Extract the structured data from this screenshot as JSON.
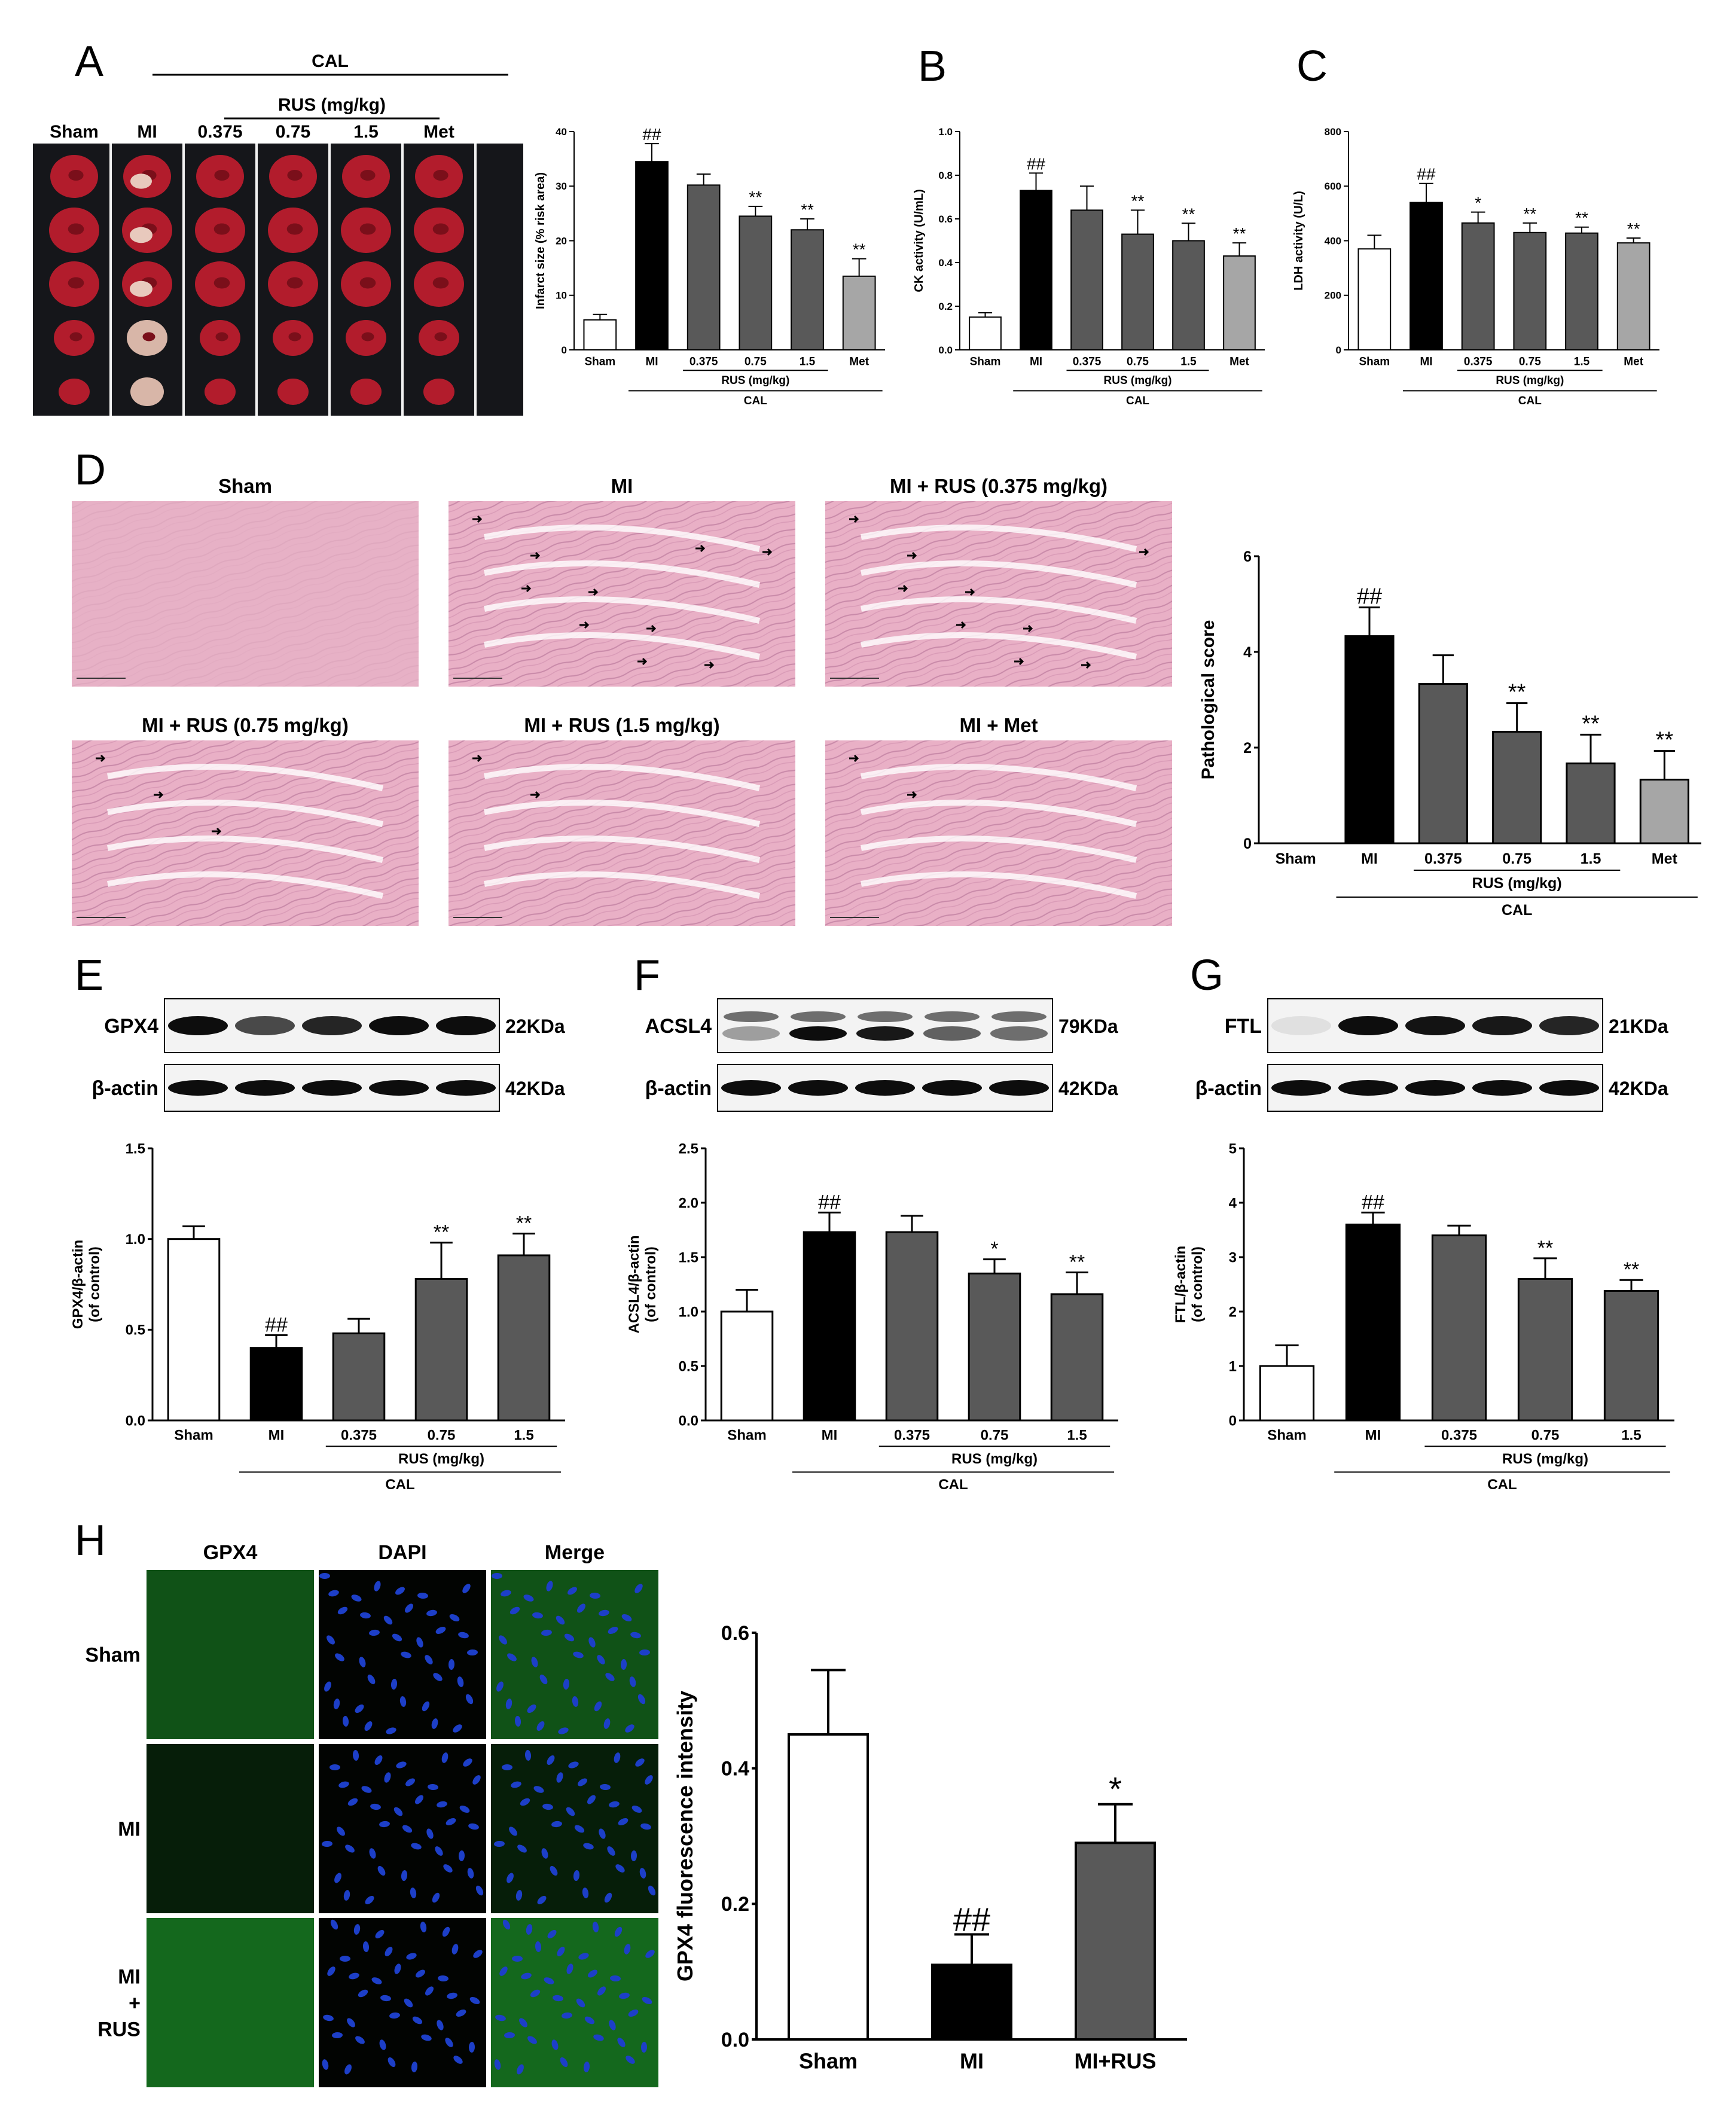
{
  "panel_labels": {
    "A": "A",
    "B": "B",
    "C": "C",
    "D": "D",
    "E": "E",
    "F": "F",
    "G": "G",
    "H": "H"
  },
  "colors": {
    "sham": "#ffffff",
    "mi": "#000000",
    "rus": "#595959",
    "met": "#a6a6a6",
    "tissue_bg": "#e9b0c6",
    "heart_red": "#b21c2c",
    "gfp": "#1e9b2c",
    "dapi": "#1d3fc8"
  },
  "panel_a_header": {
    "cal": "CAL",
    "rus": "RUS (mg/kg)",
    "columns": [
      "Sham",
      "MI",
      "0.375",
      "0.75",
      "1.5",
      "Met"
    ]
  },
  "panel_d_titles": [
    "Sham",
    "MI",
    "MI + RUS (0.375 mg/kg)",
    "MI + RUS (0.75 mg/kg)",
    "MI + RUS (1.5 mg/kg)",
    "MI + Met"
  ],
  "blots": {
    "E": {
      "rows": [
        {
          "label": "GPX4",
          "size": "22KDa"
        },
        {
          "label": "β-actin",
          "size": "42KDa"
        }
      ]
    },
    "F": {
      "rows": [
        {
          "label": "ACSL4",
          "size": "79KDa"
        },
        {
          "label": "β-actin",
          "size": "42KDa"
        }
      ]
    },
    "G": {
      "rows": [
        {
          "label": "FTL",
          "size": "21KDa"
        },
        {
          "label": "β-actin",
          "size": "42KDa"
        }
      ]
    }
  },
  "panel_h_header": {
    "cols": [
      "GPX4",
      "DAPI",
      "Merge"
    ],
    "rows": [
      "Sham",
      "MI",
      "MI\n+\nRUS"
    ]
  },
  "chart_data": [
    {
      "id": "A",
      "type": "bar",
      "categories": [
        "Sham",
        "MI",
        "0.375",
        "0.75",
        "1.5",
        "Met"
      ],
      "values": [
        5.5,
        34.5,
        30.2,
        24.5,
        22,
        13.5
      ],
      "errors": [
        1,
        3.3,
        2,
        1.8,
        2,
        3.2
      ],
      "marks": [
        "",
        "##",
        "",
        "**",
        "**",
        "**"
      ],
      "ylabel": "Infarct size (% risk area)",
      "ylim": [
        0,
        40
      ],
      "yticks": [
        "0",
        "10",
        "20",
        "30",
        "40"
      ],
      "group1": "RUS (mg/kg)",
      "group2": "CAL"
    },
    {
      "id": "B",
      "type": "bar",
      "categories": [
        "Sham",
        "MI",
        "0.375",
        "0.75",
        "1.5",
        "Met"
      ],
      "values": [
        0.15,
        0.73,
        0.64,
        0.53,
        0.5,
        0.43
      ],
      "errors": [
        0.02,
        0.08,
        0.11,
        0.11,
        0.08,
        0.06
      ],
      "marks": [
        "",
        "##",
        "",
        "**",
        "**",
        "**"
      ],
      "ylabel": "CK activity (U/mL)",
      "ylim": [
        0,
        1.0
      ],
      "yticks": [
        "0.0",
        "0.2",
        "0.4",
        "0.6",
        "0.8",
        "1.0"
      ],
      "group1": "RUS (mg/kg)",
      "group2": "CAL"
    },
    {
      "id": "C",
      "type": "bar",
      "categories": [
        "Sham",
        "MI",
        "0.375",
        "0.75",
        "1.5",
        "Met"
      ],
      "values": [
        370,
        540,
        465,
        430,
        428,
        392
      ],
      "errors": [
        50,
        70,
        40,
        35,
        22,
        18
      ],
      "marks": [
        "",
        "##",
        "*",
        "**",
        "**",
        "**"
      ],
      "ylabel": "LDH activity (U/L)",
      "ylim": [
        0,
        800
      ],
      "yticks": [
        "0",
        "200",
        "400",
        "600",
        "800"
      ],
      "group1": "RUS (mg/kg)",
      "group2": "CAL"
    },
    {
      "id": "D",
      "type": "bar",
      "categories": [
        "Sham",
        "MI",
        "0.375",
        "0.75",
        "1.5",
        "Met"
      ],
      "values": [
        0,
        4.33,
        3.33,
        2.33,
        1.67,
        1.33
      ],
      "errors": [
        0,
        0.6,
        0.6,
        0.6,
        0.6,
        0.6
      ],
      "marks": [
        "",
        "##",
        "",
        "**",
        "**",
        "**"
      ],
      "ylabel": "Pathological score",
      "ylim": [
        0,
        6
      ],
      "yticks": [
        "0",
        "2",
        "4",
        "6"
      ],
      "group1": "RUS (mg/kg)",
      "group2": "CAL"
    },
    {
      "id": "E",
      "type": "bar",
      "categories": [
        "Sham",
        "MI",
        "0.375",
        "0.75",
        "1.5"
      ],
      "values": [
        1.0,
        0.4,
        0.48,
        0.78,
        0.91
      ],
      "errors": [
        0.07,
        0.07,
        0.08,
        0.2,
        0.12
      ],
      "marks": [
        "",
        "##",
        "",
        "**",
        "**"
      ],
      "ylabel": "GPX4/β-actin\n(of control)",
      "ylim": [
        0,
        1.5
      ],
      "yticks": [
        "0.0",
        "0.5",
        "1.0",
        "1.5"
      ],
      "group1": "RUS (mg/kg)",
      "group2": "CAL"
    },
    {
      "id": "F",
      "type": "bar",
      "categories": [
        "Sham",
        "MI",
        "0.375",
        "0.75",
        "1.5"
      ],
      "values": [
        1.0,
        1.73,
        1.73,
        1.35,
        1.16
      ],
      "errors": [
        0.2,
        0.18,
        0.15,
        0.13,
        0.2
      ],
      "marks": [
        "",
        "##",
        "",
        "*",
        "**"
      ],
      "ylabel": "ACSL4/β-actin\n(of control)",
      "ylim": [
        0,
        2.5
      ],
      "yticks": [
        "0.0",
        "0.5",
        "1.0",
        "1.5",
        "2.0",
        "2.5"
      ],
      "group1": "RUS (mg/kg)",
      "group2": "CAL"
    },
    {
      "id": "G",
      "type": "bar",
      "categories": [
        "Sham",
        "MI",
        "0.375",
        "0.75",
        "1.5"
      ],
      "values": [
        1.0,
        3.6,
        3.4,
        2.6,
        2.38
      ],
      "errors": [
        0.38,
        0.22,
        0.18,
        0.38,
        0.2
      ],
      "marks": [
        "",
        "##",
        "",
        "**",
        "**"
      ],
      "ylabel": "FTL/β-actin\n(of control)",
      "ylim": [
        0,
        5
      ],
      "yticks": [
        "0",
        "1",
        "2",
        "3",
        "4",
        "5"
      ],
      "group1": "RUS (mg/kg)",
      "group2": "CAL"
    },
    {
      "id": "H",
      "type": "bar",
      "categories": [
        "Sham",
        "MI",
        "MI+RUS"
      ],
      "values": [
        0.45,
        0.11,
        0.29
      ],
      "errors": [
        0.095,
        0.045,
        0.057
      ],
      "marks": [
        "",
        "##",
        "*"
      ],
      "ylabel": "GPX4 fluorescence intensity",
      "ylim": [
        0,
        0.6
      ],
      "yticks": [
        "0.0",
        "0.2",
        "0.4",
        "0.6"
      ]
    }
  ]
}
